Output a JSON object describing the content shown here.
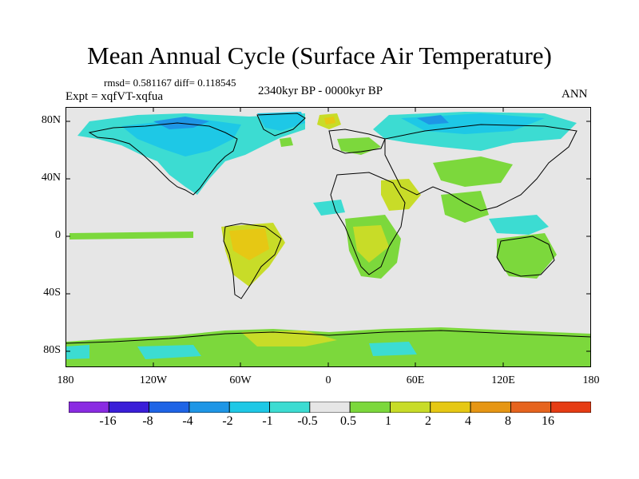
{
  "title": "Mean Annual Cycle (Surface Air Temperature)",
  "stats": "rmsd= 0.581167 diff= 0.118545",
  "experiment": "Expt = xqfVT-xqfua",
  "period": "2340kyr BP - 0000kyr BP",
  "season": "ANN",
  "map": {
    "lat_labels": [
      "80N",
      "40N",
      "0",
      "40S",
      "80S"
    ],
    "lon_labels": [
      "180",
      "120W",
      "60W",
      "0",
      "60E",
      "120E",
      "180"
    ],
    "background_color": "#e6e6e6"
  },
  "colorbar": {
    "labels": [
      "-16",
      "-8",
      "-4",
      "-2",
      "-1",
      "-0.5",
      "0.5",
      "1",
      "2",
      "4",
      "8",
      "16"
    ],
    "colors": [
      "#8a2be2",
      "#3a1ed8",
      "#1e64e6",
      "#1e96e6",
      "#1ec8e6",
      "#3cdcd2",
      "#e6e6e6",
      "#7cd83c",
      "#c8dc28",
      "#e6c814",
      "#e69614",
      "#e6641e",
      "#e63c14"
    ]
  }
}
